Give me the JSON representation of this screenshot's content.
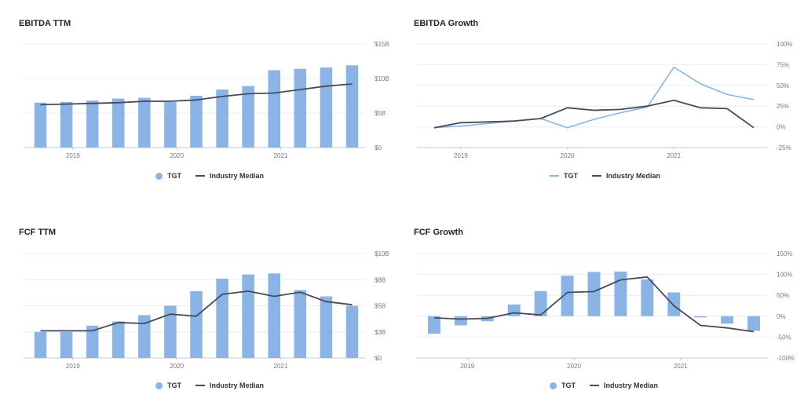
{
  "colors": {
    "tgt": "#8ab4e6",
    "median": "#4a4a55",
    "grid": "#ececf0",
    "axis": "#c8c8d8"
  },
  "chart_data": [
    {
      "id": "ebitda-ttm",
      "type": "bar",
      "title": "EBITDA TTM",
      "x_ticks": [
        "2019",
        "2020",
        "2021"
      ],
      "x_tick_index": [
        1.25,
        5.25,
        9.25
      ],
      "y_ticks": [
        "$0",
        "$5B",
        "$10B",
        "$15B"
      ],
      "y_tick_values": [
        0,
        5,
        10,
        15
      ],
      "ylim": [
        0,
        15
      ],
      "series": [
        {
          "name": "TGT",
          "kind": "bar",
          "values": [
            6.5,
            6.6,
            6.8,
            7.1,
            7.2,
            6.6,
            7.5,
            8.4,
            8.9,
            11.2,
            11.4,
            11.6,
            11.9
          ]
        },
        {
          "name": "Industry Median",
          "kind": "line",
          "values": [
            6.2,
            6.3,
            6.4,
            6.5,
            6.7,
            6.7,
            6.9,
            7.4,
            7.8,
            7.9,
            8.4,
            8.9,
            9.2
          ]
        }
      ],
      "legend": [
        "TGT",
        "Industry Median"
      ],
      "legend_types": [
        "dot",
        "line"
      ]
    },
    {
      "id": "ebitda-growth",
      "type": "line",
      "title": "EBITDA Growth",
      "x_ticks": [
        "2019",
        "2020",
        "2021"
      ],
      "x_tick_index": [
        1,
        5,
        9
      ],
      "y_ticks": [
        "-25%",
        "0%",
        "25%",
        "50%",
        "75%",
        "100%"
      ],
      "y_tick_values": [
        -25,
        0,
        25,
        50,
        75,
        100
      ],
      "ylim": [
        -25,
        100
      ],
      "series": [
        {
          "name": "TGT",
          "kind": "line",
          "values": [
            -1,
            1,
            4,
            7,
            10,
            -1,
            9,
            17,
            24,
            72,
            52,
            39,
            33
          ]
        },
        {
          "name": "Industry Median",
          "kind": "line",
          "values": [
            -1,
            5,
            6,
            7,
            10,
            23,
            20,
            21,
            25,
            32,
            23,
            22,
            -1
          ]
        }
      ],
      "legend": [
        "TGT",
        "Industry Median"
      ],
      "legend_types": [
        "line",
        "line"
      ]
    },
    {
      "id": "fcf-ttm",
      "type": "bar",
      "title": "FCF TTM",
      "x_ticks": [
        "2019",
        "2020",
        "2021"
      ],
      "x_tick_index": [
        1.25,
        5.25,
        9.25
      ],
      "y_ticks": [
        "$0",
        "$3B",
        "$5B",
        "$8B",
        "$10B"
      ],
      "y_tick_values": [
        0,
        2.5,
        5,
        7.5,
        10
      ],
      "ylim": [
        0,
        10
      ],
      "series": [
        {
          "name": "TGT",
          "kind": "bar",
          "values": [
            2.5,
            2.5,
            3.1,
            3.5,
            4.1,
            5.0,
            6.4,
            7.6,
            8.0,
            8.1,
            6.5,
            5.9,
            5.0
          ]
        },
        {
          "name": "Industry Median",
          "kind": "line",
          "values": [
            2.6,
            2.6,
            2.6,
            3.4,
            3.3,
            4.2,
            4.0,
            6.1,
            6.4,
            5.9,
            6.3,
            5.4,
            5.1
          ]
        }
      ],
      "legend": [
        "TGT",
        "Industry Median"
      ],
      "legend_types": [
        "dot",
        "line"
      ]
    },
    {
      "id": "fcf-growth",
      "type": "bar",
      "title": "FCF Growth",
      "x_ticks": [
        "2019",
        "2020",
        "2021"
      ],
      "x_tick_index": [
        1.25,
        5.25,
        9.25
      ],
      "y_ticks": [
        "-100%",
        "-50%",
        "0%",
        "50%",
        "100%",
        "150%"
      ],
      "y_tick_values": [
        -100,
        -50,
        0,
        50,
        100,
        150
      ],
      "ylim": [
        -100,
        150
      ],
      "series": [
        {
          "name": "TGT",
          "kind": "bar",
          "values": [
            -42,
            -22,
            -12,
            28,
            60,
            97,
            106,
            107,
            88,
            57,
            -3,
            -18,
            -35
          ]
        },
        {
          "name": "Industry Median",
          "kind": "line",
          "values": [
            -4,
            -7,
            -5,
            8,
            3,
            57,
            59,
            87,
            94,
            25,
            -22,
            -28,
            -37
          ]
        }
      ],
      "legend": [
        "TGT",
        "Industry Median"
      ],
      "legend_types": [
        "dot",
        "line"
      ]
    }
  ]
}
